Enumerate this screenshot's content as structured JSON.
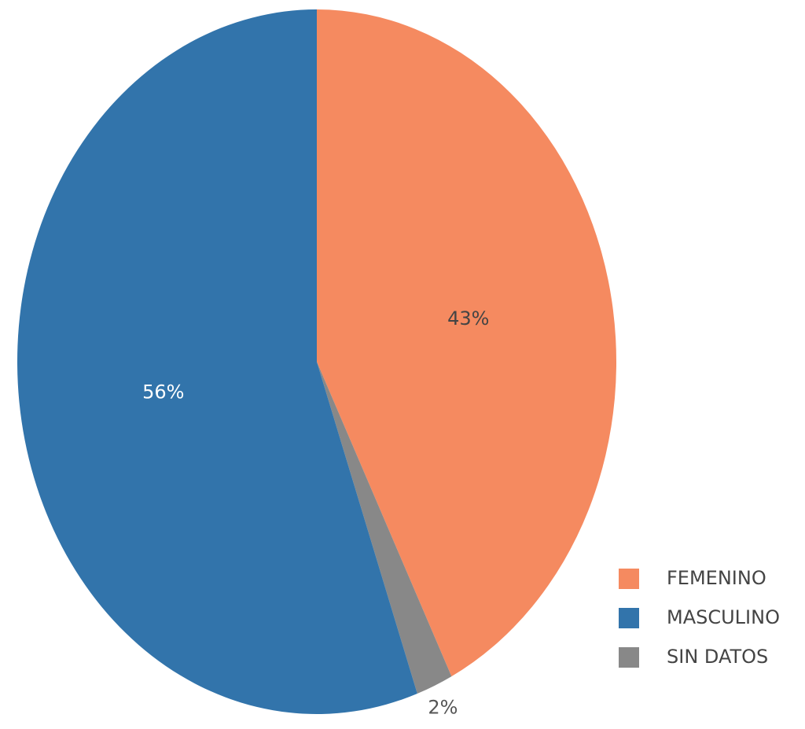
{
  "chart_data": {
    "type": "pie",
    "categories": [
      "FEMENINO",
      "SIN DATOS",
      "MASCULINO"
    ],
    "values": [
      43,
      2,
      56
    ],
    "value_labels": [
      "43%",
      "2%",
      "56%"
    ],
    "colors": [
      "#f58a60",
      "#888888",
      "#3274ab"
    ],
    "legend_order": [
      0,
      2,
      1
    ],
    "legend": "bottom-right"
  }
}
